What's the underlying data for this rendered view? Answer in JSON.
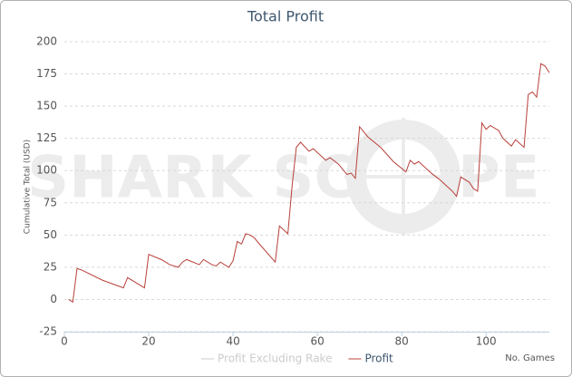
{
  "chart_data": {
    "type": "line",
    "title": "Total Profit",
    "y_label": "Cumulative Total (USD)",
    "x_label": "No. Games",
    "watermark": [
      "SHARK SC",
      "PE"
    ],
    "x": [
      1,
      2,
      3,
      4,
      9,
      14,
      15,
      19,
      20,
      23,
      25,
      27,
      28,
      29,
      32,
      33,
      35,
      36,
      37,
      39,
      40,
      41,
      42,
      43,
      44,
      45,
      46,
      50,
      51,
      53,
      54,
      55,
      56,
      58,
      59,
      62,
      63,
      65,
      67,
      68,
      69,
      70,
      71,
      72,
      75,
      78,
      81,
      82,
      83,
      84,
      87,
      89,
      92,
      93,
      94,
      96,
      97,
      98,
      99,
      100,
      101,
      103,
      104,
      106,
      107,
      109,
      110,
      111,
      112,
      113,
      114,
      115
    ],
    "series": [
      {
        "name": "Profit Excluding Rake",
        "color": "#cccccc",
        "visible": false
      },
      {
        "name": "Profit",
        "color": "#b8403a",
        "visible": true,
        "values": [
          0,
          -2,
          24,
          23,
          15,
          9,
          17,
          9,
          35,
          31,
          27,
          25,
          29,
          31,
          27,
          31,
          27,
          26,
          29,
          25,
          30,
          45,
          43,
          51,
          50,
          48,
          44,
          29,
          57,
          51,
          88,
          118,
          122,
          115,
          117,
          108,
          110,
          105,
          97,
          98,
          94,
          134,
          130,
          126,
          118,
          107,
          99,
          108,
          105,
          107,
          98,
          93,
          84,
          80,
          95,
          91,
          86,
          84,
          137,
          132,
          135,
          131,
          125,
          119,
          124,
          118,
          159,
          161,
          157,
          183,
          181,
          176
        ]
      }
    ],
    "xlim": [
      0,
      115
    ],
    "ylim": [
      -25,
      200
    ],
    "xticks": [
      0,
      20,
      40,
      60,
      80,
      100
    ],
    "yticks": [
      -25,
      0,
      25,
      50,
      75,
      100,
      125,
      150,
      175,
      200
    ],
    "grid": true
  }
}
